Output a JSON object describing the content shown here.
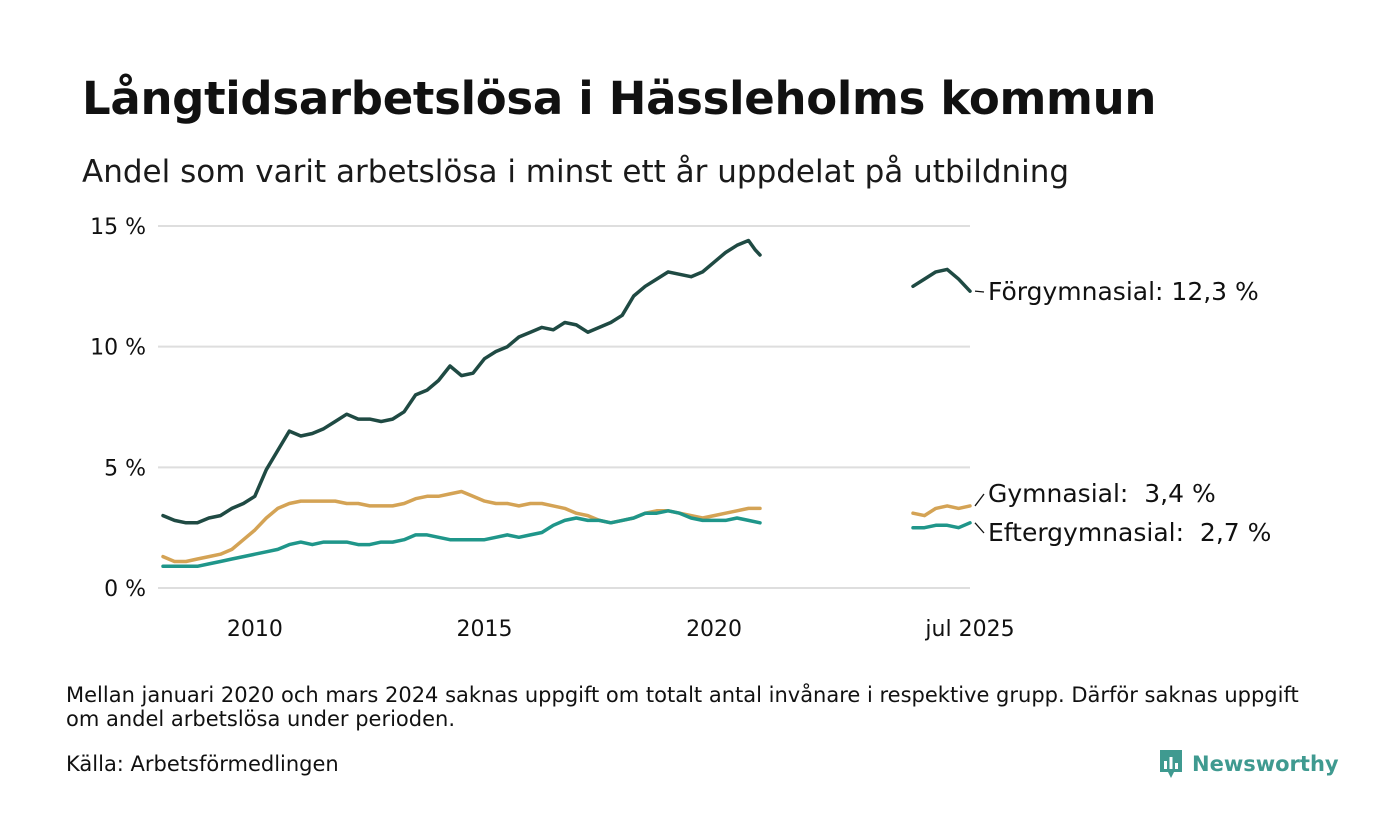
{
  "title": "Långtidsarbetslösa i Hässleholms kommun",
  "subtitle": "Andel som varit arbetslösa i minst ett år uppdelat på utbildning",
  "note": "Mellan januari 2020 och mars 2024 saknas uppgift om totalt antal invånare i respektive grupp. Därför saknas uppgift om andel arbetslösa under perioden.",
  "source": "Källa: Arbetsförmedlingen",
  "brand": {
    "name": "Newsworthy",
    "icon": "newsworthy-logo-icon"
  },
  "colors": {
    "forgymnasial": "#1f4a43",
    "gymnasial": "#d4a355",
    "eftergymnasial": "#1f968a",
    "grid": "#dedede"
  },
  "chart_data": {
    "type": "line",
    "title": "Långtidsarbetslösa i Hässleholms kommun",
    "subtitle": "Andel som varit arbetslösa i minst ett år uppdelat på utbildning",
    "xlabel": "",
    "ylabel": "",
    "ylim": [
      0,
      15
    ],
    "grid": true,
    "legend": "end-of-line labels",
    "y_ticks": [
      {
        "value": 0,
        "label": "0 %"
      },
      {
        "value": 5,
        "label": "5 %"
      },
      {
        "value": 10,
        "label": "10 %"
      },
      {
        "value": 15,
        "label": "15 %"
      }
    ],
    "x_ticks": [
      {
        "value": 2010,
        "label": "2010"
      },
      {
        "value": 2015,
        "label": "2015"
      },
      {
        "value": 2020,
        "label": "2020"
      },
      {
        "value": 2025.5,
        "label": "jul 2025"
      }
    ],
    "x_axis_breaks": [
      [
        2021.0,
        2024.2
      ]
    ],
    "series": [
      {
        "name": "Förgymnasial",
        "end_label": "Förgymnasial: 12,3 %",
        "color": "#1f4a43",
        "segments": [
          [
            [
              2008.0,
              3.0
            ],
            [
              2008.25,
              2.8
            ],
            [
              2008.5,
              2.7
            ],
            [
              2008.75,
              2.7
            ],
            [
              2009.0,
              2.9
            ],
            [
              2009.25,
              3.0
            ],
            [
              2009.5,
              3.3
            ],
            [
              2009.75,
              3.5
            ],
            [
              2010.0,
              3.8
            ],
            [
              2010.25,
              4.9
            ],
            [
              2010.5,
              5.7
            ],
            [
              2010.75,
              6.5
            ],
            [
              2011.0,
              6.3
            ],
            [
              2011.25,
              6.4
            ],
            [
              2011.5,
              6.6
            ],
            [
              2011.75,
              6.9
            ],
            [
              2012.0,
              7.2
            ],
            [
              2012.25,
              7.0
            ],
            [
              2012.5,
              7.0
            ],
            [
              2012.75,
              6.9
            ],
            [
              2013.0,
              7.0
            ],
            [
              2013.25,
              7.3
            ],
            [
              2013.5,
              8.0
            ],
            [
              2013.75,
              8.2
            ],
            [
              2014.0,
              8.6
            ],
            [
              2014.25,
              9.2
            ],
            [
              2014.5,
              8.8
            ],
            [
              2014.75,
              8.9
            ],
            [
              2015.0,
              9.5
            ],
            [
              2015.25,
              9.8
            ],
            [
              2015.5,
              10.0
            ],
            [
              2015.75,
              10.4
            ],
            [
              2016.0,
              10.6
            ],
            [
              2016.25,
              10.8
            ],
            [
              2016.5,
              10.7
            ],
            [
              2016.75,
              11.0
            ],
            [
              2017.0,
              10.9
            ],
            [
              2017.25,
              10.6
            ],
            [
              2017.5,
              10.8
            ],
            [
              2017.75,
              11.0
            ],
            [
              2018.0,
              11.3
            ],
            [
              2018.25,
              12.1
            ],
            [
              2018.5,
              12.5
            ],
            [
              2018.75,
              12.8
            ],
            [
              2019.0,
              13.1
            ],
            [
              2019.25,
              13.0
            ],
            [
              2019.5,
              12.9
            ],
            [
              2019.75,
              13.1
            ],
            [
              2020.0,
              13.5
            ],
            [
              2020.25,
              13.9
            ],
            [
              2020.5,
              14.2
            ],
            [
              2020.75,
              14.4
            ],
            [
              2020.9,
              14.0
            ],
            [
              2021.0,
              13.8
            ]
          ],
          [
            [
              2024.25,
              12.5
            ],
            [
              2024.5,
              12.8
            ],
            [
              2024.75,
              13.1
            ],
            [
              2025.0,
              13.2
            ],
            [
              2025.25,
              12.8
            ],
            [
              2025.5,
              12.3
            ]
          ]
        ]
      },
      {
        "name": "Gymnasial",
        "end_label": "Gymnasial:  3,4 %",
        "color": "#d4a355",
        "segments": [
          [
            [
              2008.0,
              1.3
            ],
            [
              2008.25,
              1.1
            ],
            [
              2008.5,
              1.1
            ],
            [
              2008.75,
              1.2
            ],
            [
              2009.0,
              1.3
            ],
            [
              2009.25,
              1.4
            ],
            [
              2009.5,
              1.6
            ],
            [
              2009.75,
              2.0
            ],
            [
              2010.0,
              2.4
            ],
            [
              2010.25,
              2.9
            ],
            [
              2010.5,
              3.3
            ],
            [
              2010.75,
              3.5
            ],
            [
              2011.0,
              3.6
            ],
            [
              2011.25,
              3.6
            ],
            [
              2011.5,
              3.6
            ],
            [
              2011.75,
              3.6
            ],
            [
              2012.0,
              3.5
            ],
            [
              2012.25,
              3.5
            ],
            [
              2012.5,
              3.4
            ],
            [
              2012.75,
              3.4
            ],
            [
              2013.0,
              3.4
            ],
            [
              2013.25,
              3.5
            ],
            [
              2013.5,
              3.7
            ],
            [
              2013.75,
              3.8
            ],
            [
              2014.0,
              3.8
            ],
            [
              2014.25,
              3.9
            ],
            [
              2014.5,
              4.0
            ],
            [
              2014.75,
              3.8
            ],
            [
              2015.0,
              3.6
            ],
            [
              2015.25,
              3.5
            ],
            [
              2015.5,
              3.5
            ],
            [
              2015.75,
              3.4
            ],
            [
              2016.0,
              3.5
            ],
            [
              2016.25,
              3.5
            ],
            [
              2016.5,
              3.4
            ],
            [
              2016.75,
              3.3
            ],
            [
              2017.0,
              3.1
            ],
            [
              2017.25,
              3.0
            ],
            [
              2017.5,
              2.8
            ],
            [
              2017.75,
              2.7
            ],
            [
              2018.0,
              2.8
            ],
            [
              2018.25,
              2.9
            ],
            [
              2018.5,
              3.1
            ],
            [
              2018.75,
              3.2
            ],
            [
              2019.0,
              3.2
            ],
            [
              2019.25,
              3.1
            ],
            [
              2019.5,
              3.0
            ],
            [
              2019.75,
              2.9
            ],
            [
              2020.0,
              3.0
            ],
            [
              2020.25,
              3.1
            ],
            [
              2020.5,
              3.2
            ],
            [
              2020.75,
              3.3
            ],
            [
              2021.0,
              3.3
            ]
          ],
          [
            [
              2024.25,
              3.1
            ],
            [
              2024.5,
              3.0
            ],
            [
              2024.75,
              3.3
            ],
            [
              2025.0,
              3.4
            ],
            [
              2025.25,
              3.3
            ],
            [
              2025.5,
              3.4
            ]
          ]
        ]
      },
      {
        "name": "Eftergymnasial",
        "end_label": "Eftergymnasial:  2,7 %",
        "color": "#1f968a",
        "segments": [
          [
            [
              2008.0,
              0.9
            ],
            [
              2008.25,
              0.9
            ],
            [
              2008.5,
              0.9
            ],
            [
              2008.75,
              0.9
            ],
            [
              2009.0,
              1.0
            ],
            [
              2009.25,
              1.1
            ],
            [
              2009.5,
              1.2
            ],
            [
              2009.75,
              1.3
            ],
            [
              2010.0,
              1.4
            ],
            [
              2010.25,
              1.5
            ],
            [
              2010.5,
              1.6
            ],
            [
              2010.75,
              1.8
            ],
            [
              2011.0,
              1.9
            ],
            [
              2011.25,
              1.8
            ],
            [
              2011.5,
              1.9
            ],
            [
              2011.75,
              1.9
            ],
            [
              2012.0,
              1.9
            ],
            [
              2012.25,
              1.8
            ],
            [
              2012.5,
              1.8
            ],
            [
              2012.75,
              1.9
            ],
            [
              2013.0,
              1.9
            ],
            [
              2013.25,
              2.0
            ],
            [
              2013.5,
              2.2
            ],
            [
              2013.75,
              2.2
            ],
            [
              2014.0,
              2.1
            ],
            [
              2014.25,
              2.0
            ],
            [
              2014.5,
              2.0
            ],
            [
              2014.75,
              2.0
            ],
            [
              2015.0,
              2.0
            ],
            [
              2015.25,
              2.1
            ],
            [
              2015.5,
              2.2
            ],
            [
              2015.75,
              2.1
            ],
            [
              2016.0,
              2.2
            ],
            [
              2016.25,
              2.3
            ],
            [
              2016.5,
              2.6
            ],
            [
              2016.75,
              2.8
            ],
            [
              2017.0,
              2.9
            ],
            [
              2017.25,
              2.8
            ],
            [
              2017.5,
              2.8
            ],
            [
              2017.75,
              2.7
            ],
            [
              2018.0,
              2.8
            ],
            [
              2018.25,
              2.9
            ],
            [
              2018.5,
              3.1
            ],
            [
              2018.75,
              3.1
            ],
            [
              2019.0,
              3.2
            ],
            [
              2019.25,
              3.1
            ],
            [
              2019.5,
              2.9
            ],
            [
              2019.75,
              2.8
            ],
            [
              2020.0,
              2.8
            ],
            [
              2020.25,
              2.8
            ],
            [
              2020.5,
              2.9
            ],
            [
              2020.75,
              2.8
            ],
            [
              2021.0,
              2.7
            ]
          ],
          [
            [
              2024.25,
              2.5
            ],
            [
              2024.5,
              2.5
            ],
            [
              2024.75,
              2.6
            ],
            [
              2025.0,
              2.6
            ],
            [
              2025.25,
              2.5
            ],
            [
              2025.5,
              2.7
            ]
          ]
        ]
      }
    ]
  }
}
